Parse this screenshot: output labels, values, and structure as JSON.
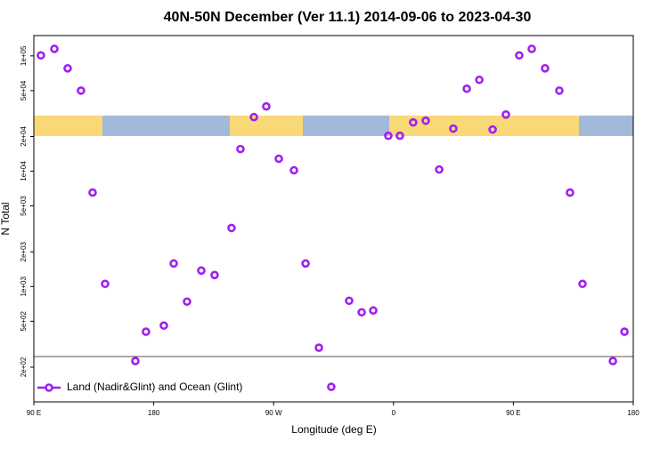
{
  "chart_data": {
    "type": "scatter",
    "title": "40N-50N December (Ver 11.1)   2014-09-06 to 2023-04-30",
    "x_label": "Longitude (deg E)",
    "y_label": "N Total",
    "log_y": true,
    "legend": "bottom-left",
    "xlim": [
      90,
      540
    ],
    "ylim": [
      100,
      150000
    ],
    "xticks": [
      {
        "value": 90,
        "label": "90 E"
      },
      {
        "value": 180,
        "label": "180"
      },
      {
        "value": 270,
        "label": "90 W"
      },
      {
        "value": 360,
        "label": "0"
      },
      {
        "value": 450,
        "label": "90 E"
      },
      {
        "value": 540,
        "label": "180"
      }
    ],
    "yticks": [
      {
        "value": 200,
        "label": "2e+02"
      },
      {
        "value": 500,
        "label": "5e+02"
      },
      {
        "value": 1000,
        "label": "1e+03"
      },
      {
        "value": 2000,
        "label": "2e+03"
      },
      {
        "value": 5000,
        "label": "5e+03"
      },
      {
        "value": 10000,
        "label": "1e+04"
      },
      {
        "value": 20000,
        "label": "2e+04"
      },
      {
        "value": 50000,
        "label": "5e+04"
      },
      {
        "value": 100000,
        "label": "1e+05"
      }
    ],
    "series": [
      {
        "name": "Land (Nadir&Glint) and Ocean (Glint)",
        "color": "#a020f0",
        "x": [
          95.3,
          105.4,
          115.4,
          125.4,
          134.1,
          143.5,
          166.2,
          174.2,
          187.6,
          195,
          205,
          215.7,
          225.7,
          238.4,
          245.1,
          255.2,
          264.5,
          273.9,
          285.3,
          294,
          304,
          313.3,
          326.7,
          336.1,
          344.8,
          356.1,
          364.8,
          374.8,
          384.2,
          394.3,
          404.9,
          415,
          424.4,
          434.4,
          444.4,
          454.4,
          463.8,
          473.8,
          484.5,
          492.5,
          501.9,
          524.7,
          533.4
        ],
        "values": [
          101000,
          115000,
          78000,
          50000,
          6530,
          1055,
          226,
          406,
          459,
          1585,
          740,
          1375,
          1259,
          3220,
          15570,
          29450,
          36450,
          12830,
          10190,
          1585,
          295,
          135,
          753,
          598,
          620,
          20300,
          20300,
          26500,
          27400,
          10350,
          23400,
          51900,
          62000,
          23000,
          31000,
          101000,
          115000,
          78000,
          50000,
          6530,
          1055,
          226,
          406
        ]
      }
    ]
  }
}
